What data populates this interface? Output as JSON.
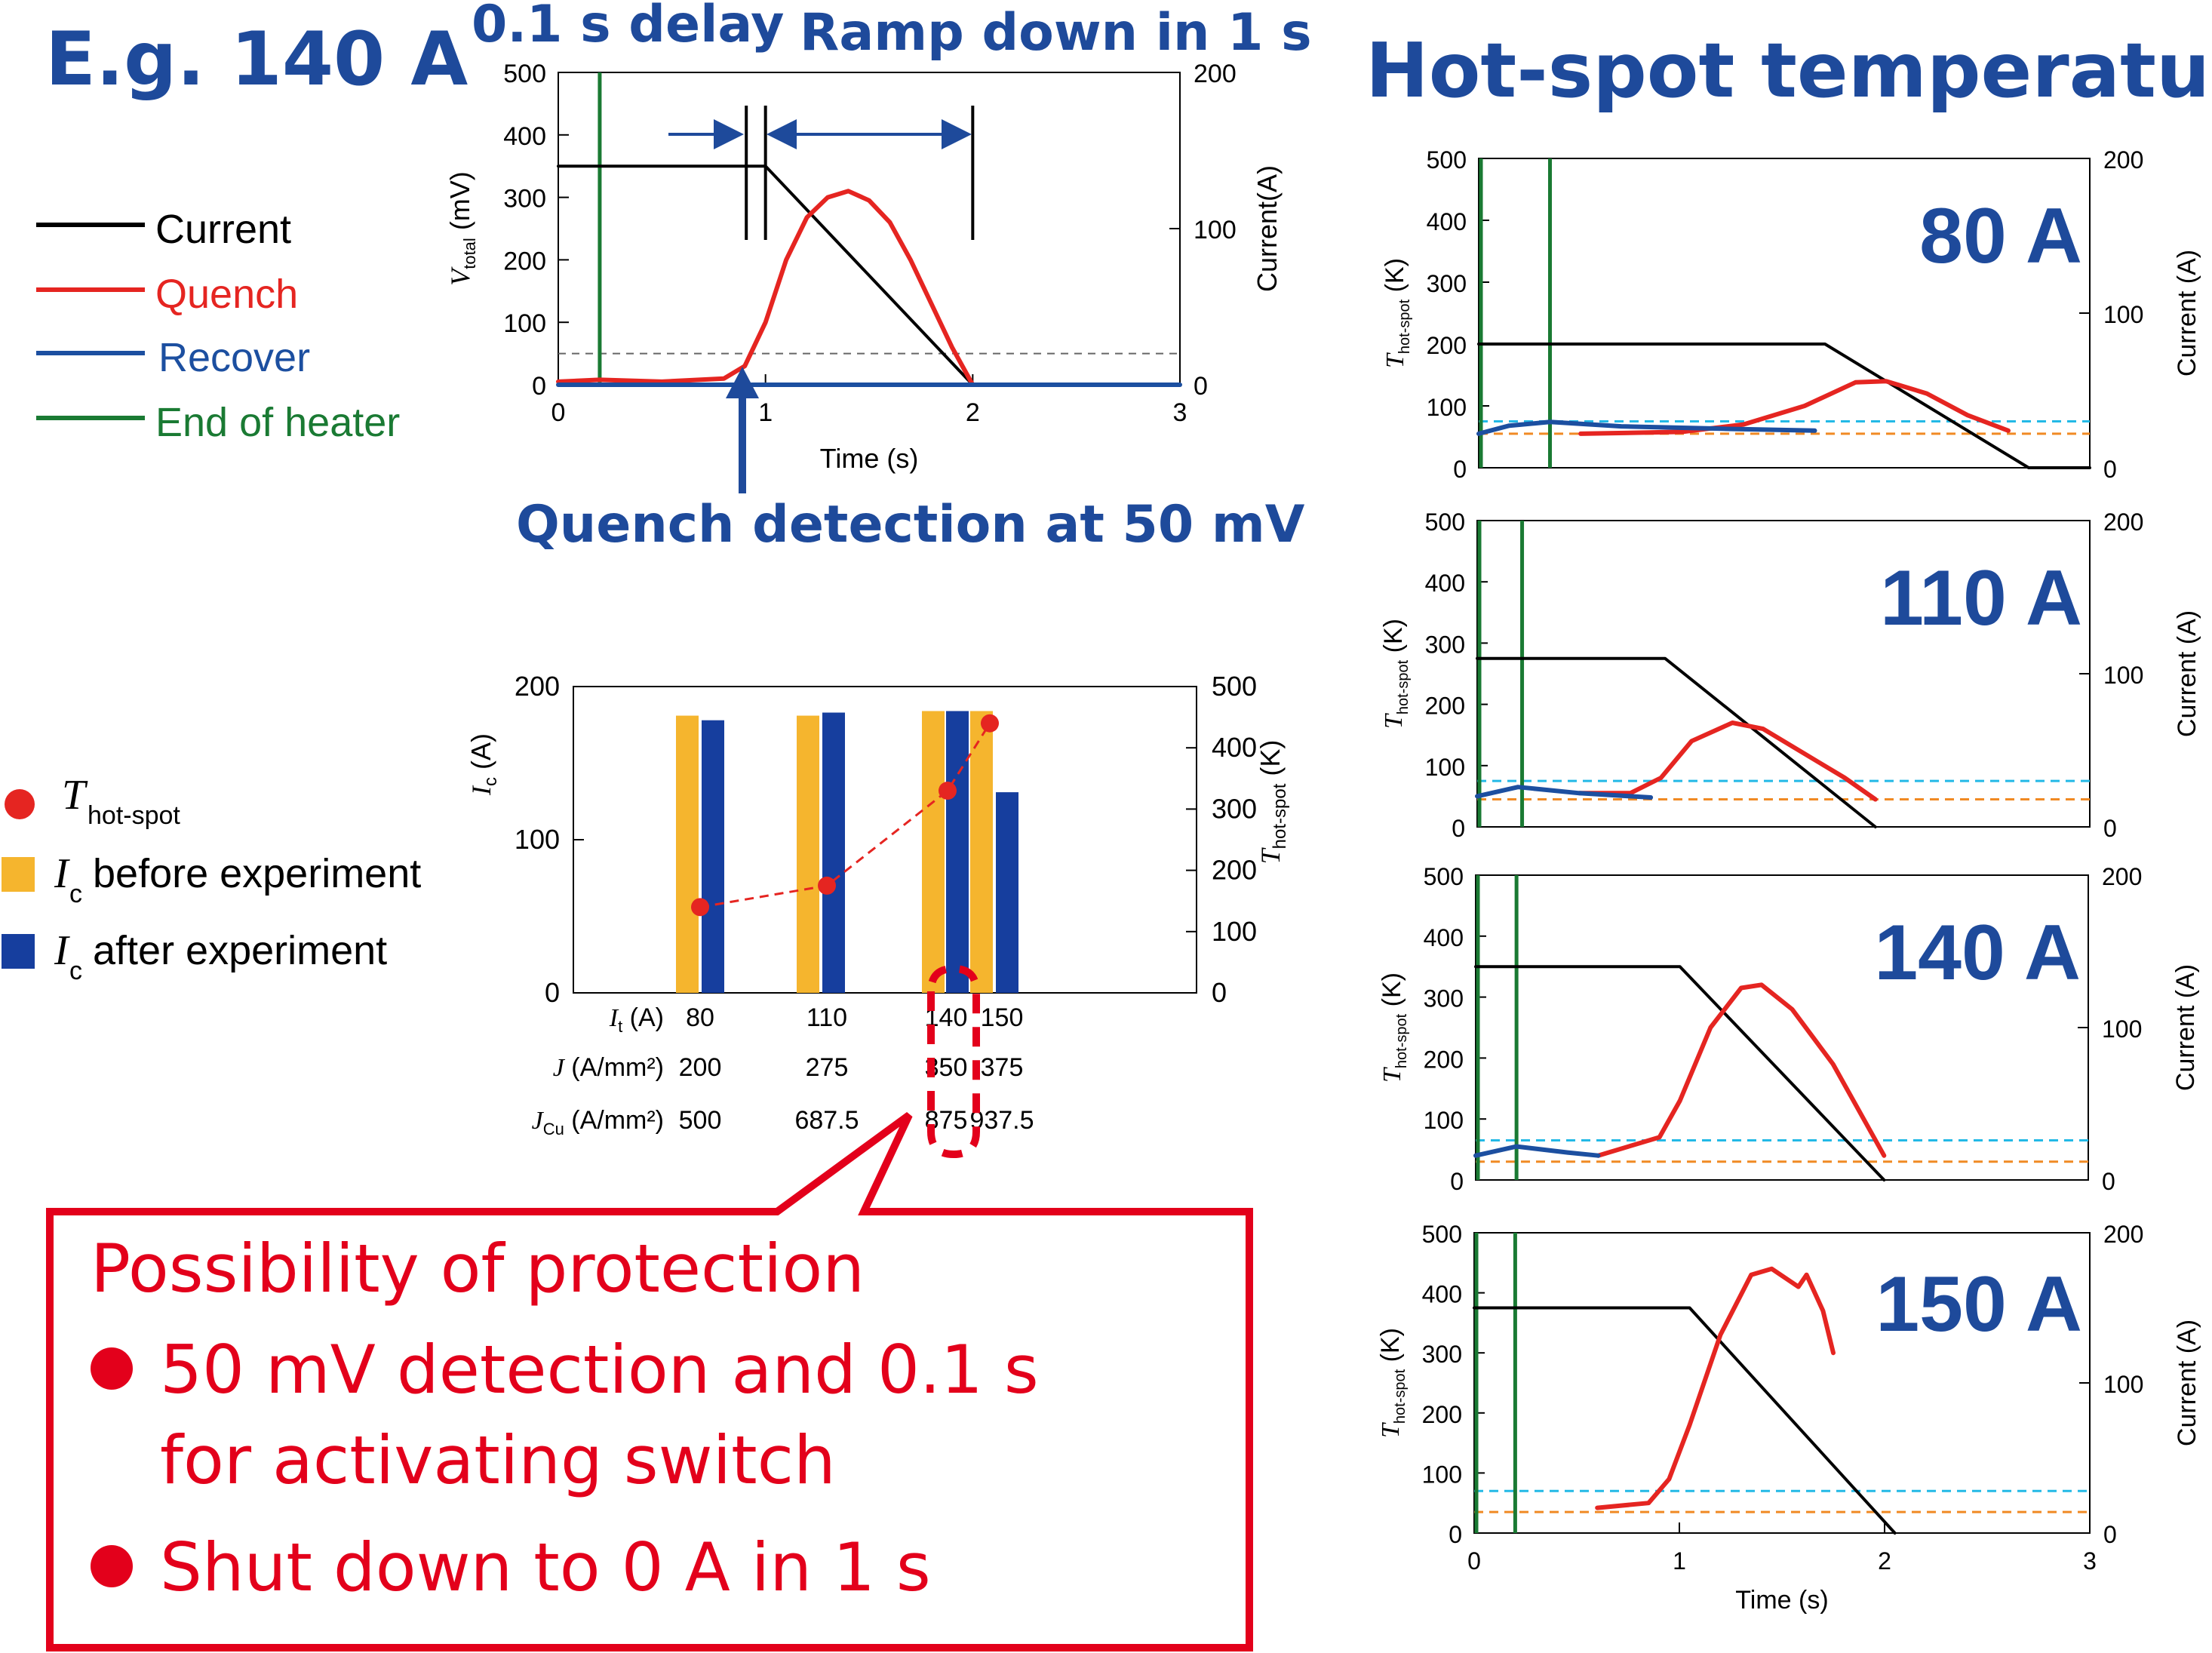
{
  "colors": {
    "navy": "#1e4a9b",
    "current": "#000000",
    "quench": "#e52521",
    "recover": "#1c4fa0",
    "heater": "#1a7a33",
    "ic_before": "#f5b52e",
    "ic_after": "#163e9e",
    "threshold_cyan": "#23b9e6",
    "threshold_orange": "#f08a24",
    "callout": "#e3001b"
  },
  "headlines": {
    "example": "E.g. 140 A",
    "delay": "0.1 s delay",
    "ramp": "Ramp down in 1 s",
    "detection": "Quench detection at 50 mV",
    "hotspot": "Hot-spot temperature"
  },
  "legend_top": {
    "current": "Current",
    "quench": "Quench",
    "recover": "Recover",
    "heater": "End of heater"
  },
  "legend_bar": {
    "thot_symbol": "T",
    "thot_sub": "hot-spot",
    "ic_symbol": "I",
    "ic_sub": "c",
    "before_text": " before experiment",
    "after_text": " after experiment"
  },
  "callout": {
    "title": "Possibility of protection",
    "bullet_1a": "50 mV detection and 0.1 s",
    "bullet_1b": "for activating switch",
    "bullet_2": "Shut down to 0 A in 1 s"
  },
  "chart_data": [
    {
      "id": "voltage_example",
      "type": "line",
      "xlabel": "Time (s)",
      "ylabel_main": "V",
      "ylabel_sub": "total",
      "ylabel_unit": " (mV)",
      "y2label": "Current(A)",
      "xlim": [
        0,
        3
      ],
      "ylim": [
        0,
        500
      ],
      "y2lim": [
        0,
        200
      ],
      "x_ticks": [
        "0",
        "1",
        "2",
        "3"
      ],
      "y_ticks": [
        "0",
        "100",
        "200",
        "300",
        "400",
        "500"
      ],
      "y2_ticks": [
        "0",
        "100",
        "200"
      ],
      "heater_end_s": 0.2,
      "threshold_mV": 50,
      "markers_s": [
        0.9,
        1.0,
        2.0
      ],
      "series": [
        {
          "name": "Current",
          "axis": "right",
          "x": [
            0,
            0.5,
            0.9,
            1.0,
            2.0,
            3.0
          ],
          "y": [
            140,
            140,
            140,
            140,
            0,
            0
          ]
        },
        {
          "name": "Quench",
          "axis": "left",
          "x": [
            0,
            0.2,
            0.5,
            0.8,
            0.9,
            1.0,
            1.1,
            1.2,
            1.3,
            1.4,
            1.5,
            1.6,
            1.7,
            1.8,
            1.9,
            2.0
          ],
          "y": [
            5,
            8,
            5,
            10,
            30,
            100,
            200,
            268,
            300,
            310,
            295,
            260,
            200,
            130,
            60,
            0
          ]
        },
        {
          "name": "Recover",
          "axis": "left",
          "x": [
            0,
            3
          ],
          "y": [
            0,
            0
          ]
        }
      ]
    },
    {
      "id": "ic_before_after",
      "type": "bar",
      "ylabel_main": "I",
      "ylabel_sub": "c",
      "ylabel_unit": " (A)",
      "y2label_main": "T",
      "y2label_sub": "hot-spot",
      "y2label_unit": " (K)",
      "ylim": [
        0,
        200
      ],
      "y2lim": [
        0,
        500
      ],
      "y_ticks": [
        "0",
        "100",
        "200"
      ],
      "y2_ticks": [
        "0",
        "100",
        "200",
        "300",
        "400",
        "500"
      ],
      "row_labels": [
        {
          "main": "I",
          "sub": "t",
          "unit": " (A)"
        },
        {
          "main": "J",
          "sub": "",
          "unit": " (A/mm²)"
        },
        {
          "main": "J",
          "sub": "Cu",
          "unit": " (A/mm²)"
        }
      ],
      "categories": [
        "80",
        "110",
        "140",
        "150"
      ],
      "J": [
        "200",
        "275",
        "350",
        "375"
      ],
      "JCu": [
        "500",
        "687.5",
        "875",
        "937.5"
      ],
      "series": [
        {
          "name": "Ic before experiment",
          "values": [
            181,
            181,
            184,
            184
          ]
        },
        {
          "name": "Ic after experiment",
          "values": [
            178,
            183,
            184,
            131
          ]
        },
        {
          "name": "T hot-spot",
          "values": [
            140,
            175,
            330,
            440
          ]
        }
      ]
    },
    {
      "id": "hotspot_80A",
      "type": "line",
      "label": "80 A",
      "xlim": [
        0,
        3
      ],
      "ylim": [
        0,
        500
      ],
      "y2lim": [
        0,
        200
      ],
      "y_ticks": [
        "0",
        "100",
        "200",
        "300",
        "400",
        "500"
      ],
      "y2_ticks": [
        "0",
        "100",
        "200"
      ],
      "ylabel_main": "T",
      "ylabel_sub": "hot-spot",
      "ylabel_unit": " (K)",
      "y2label": "Current (A)",
      "heater_end_s": [
        0.0,
        0.35
      ],
      "cyan_K": 75,
      "orange_K": 55,
      "series": [
        {
          "name": "Current",
          "axis": "right",
          "x": [
            0,
            0.5,
            1.0,
            1.7,
            2.7,
            3.0
          ],
          "y": [
            80,
            80,
            80,
            80,
            0,
            0
          ]
        },
        {
          "name": "Quench",
          "axis": "left",
          "x": [
            0.5,
            1.0,
            1.3,
            1.6,
            1.85,
            2.0,
            2.2,
            2.4,
            2.6
          ],
          "y": [
            55,
            58,
            70,
            100,
            138,
            140,
            120,
            85,
            60
          ]
        },
        {
          "name": "Recover",
          "axis": "left",
          "x": [
            0,
            0.15,
            0.35,
            0.7,
            1.2,
            1.65
          ],
          "y": [
            55,
            68,
            74,
            67,
            63,
            60
          ]
        }
      ]
    },
    {
      "id": "hotspot_110A",
      "type": "line",
      "label": "110 A",
      "xlim": [
        0,
        3
      ],
      "ylim": [
        0,
        500
      ],
      "y2lim": [
        0,
        200
      ],
      "y_ticks": [
        "0",
        "100",
        "200",
        "300",
        "400",
        "500"
      ],
      "y2_ticks": [
        "0",
        "100",
        "200"
      ],
      "ylabel_main": "T",
      "ylabel_sub": "hot-spot",
      "ylabel_unit": " (K)",
      "y2label": "Current (A)",
      "heater_end_s": [
        0.0,
        0.22
      ],
      "cyan_K": 75,
      "orange_K": 45,
      "series": [
        {
          "name": "Current",
          "axis": "right",
          "x": [
            0,
            0.5,
            0.92,
            1.95
          ],
          "y": [
            110,
            110,
            110,
            0
          ]
        },
        {
          "name": "Quench",
          "axis": "left",
          "x": [
            0.5,
            0.75,
            0.9,
            1.05,
            1.25,
            1.4,
            1.6,
            1.8,
            1.95
          ],
          "y": [
            55,
            55,
            80,
            140,
            170,
            160,
            120,
            80,
            45
          ]
        },
        {
          "name": "Recover",
          "axis": "left",
          "x": [
            0,
            0.2,
            0.5,
            0.85
          ],
          "y": [
            50,
            65,
            55,
            48
          ]
        }
      ]
    },
    {
      "id": "hotspot_140A",
      "type": "line",
      "label": "140 A",
      "xlim": [
        0,
        3
      ],
      "ylim": [
        0,
        500
      ],
      "y2lim": [
        0,
        200
      ],
      "y_ticks": [
        "0",
        "100",
        "200",
        "300",
        "400",
        "500"
      ],
      "y2_ticks": [
        "0",
        "100",
        "200"
      ],
      "ylabel_main": "T",
      "ylabel_sub": "hot-spot",
      "ylabel_unit": " (K)",
      "y2label": "Current (A)",
      "heater_end_s": [
        0.0,
        0.2
      ],
      "cyan_K": 65,
      "orange_K": 30,
      "series": [
        {
          "name": "Current",
          "axis": "right",
          "x": [
            0,
            0.5,
            1.0,
            2.0
          ],
          "y": [
            140,
            140,
            140,
            0
          ]
        },
        {
          "name": "Quench",
          "axis": "left",
          "x": [
            0.6,
            0.9,
            1.0,
            1.15,
            1.3,
            1.4,
            1.55,
            1.75,
            1.95,
            2.0
          ],
          "y": [
            40,
            70,
            130,
            250,
            315,
            320,
            280,
            190,
            70,
            40
          ]
        },
        {
          "name": "Recover",
          "axis": "left",
          "x": [
            0,
            0.2,
            0.45,
            0.6
          ],
          "y": [
            40,
            55,
            45,
            40
          ]
        }
      ]
    },
    {
      "id": "hotspot_150A",
      "type": "line",
      "label": "150 A",
      "xlim": [
        0,
        3
      ],
      "ylim": [
        0,
        500
      ],
      "y2lim": [
        0,
        200
      ],
      "x_ticks": [
        "0",
        "1",
        "2",
        "3"
      ],
      "y_ticks": [
        "0",
        "100",
        "200",
        "300",
        "400",
        "500"
      ],
      "y2_ticks": [
        "0",
        "100",
        "200"
      ],
      "xlabel": "Time (s)",
      "ylabel_main": "T",
      "ylabel_sub": "hot-spot",
      "ylabel_unit": " (K)",
      "y2label": "Current (A)",
      "heater_end_s": [
        0.0,
        0.2
      ],
      "cyan_K": 70,
      "orange_K": 35,
      "series": [
        {
          "name": "Current",
          "axis": "right",
          "x": [
            0,
            0.5,
            1.05,
            2.05
          ],
          "y": [
            150,
            150,
            150,
            0
          ]
        },
        {
          "name": "Quench",
          "axis": "left",
          "x": [
            0.6,
            0.85,
            0.95,
            1.05,
            1.2,
            1.35,
            1.45,
            1.58,
            1.62,
            1.7,
            1.75
          ],
          "y": [
            42,
            50,
            90,
            180,
            330,
            430,
            440,
            410,
            430,
            370,
            300
          ]
        }
      ]
    }
  ]
}
